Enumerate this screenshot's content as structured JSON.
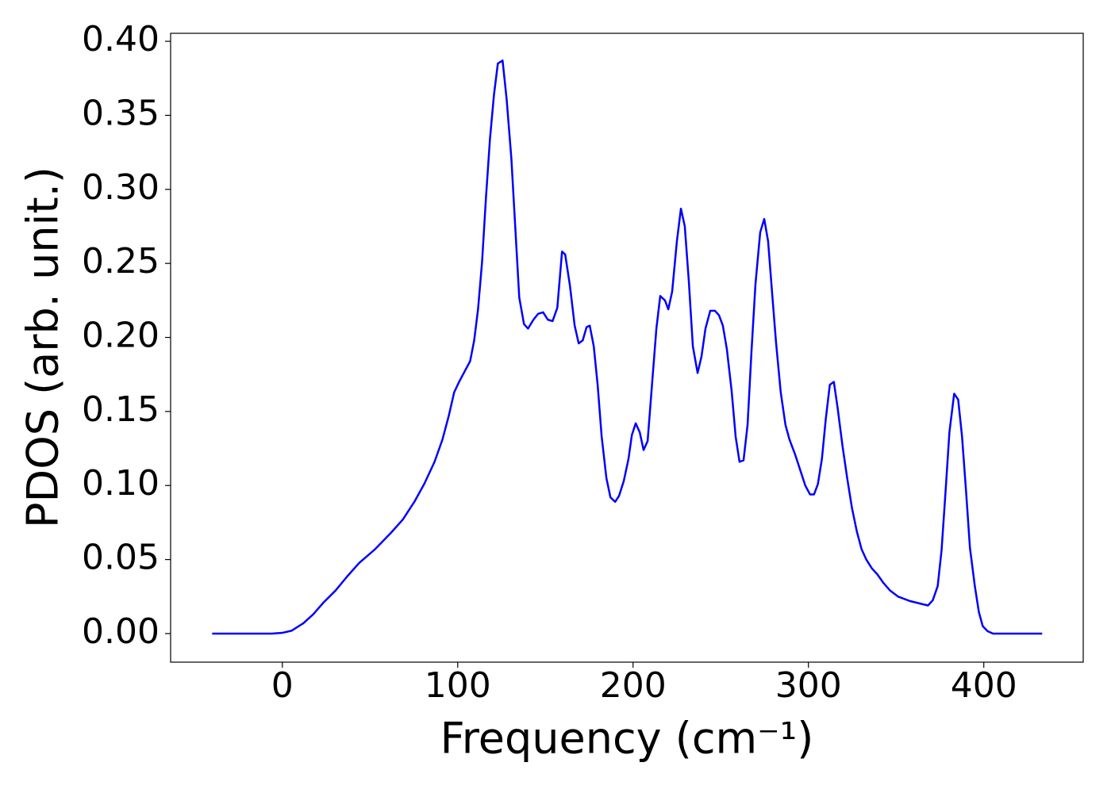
{
  "chart_data": {
    "type": "line",
    "xlabel": "Frequency (cm⁻¹)",
    "ylabel": "PDOS (arb. unit.)",
    "xlim": [
      -63.7,
      456.7
    ],
    "ylim": [
      -0.0193,
      0.4054
    ],
    "xticks": [
      0,
      100,
      200,
      300,
      400
    ],
    "yticks": [
      {
        "value": 0,
        "label": "0.00"
      },
      {
        "value": 0.05,
        "label": "0.05"
      },
      {
        "value": 0.1,
        "label": "0.10"
      },
      {
        "value": 0.15,
        "label": "0.15"
      },
      {
        "value": 0.2,
        "label": "0.20"
      },
      {
        "value": 0.25,
        "label": "0.25"
      },
      {
        "value": 0.3,
        "label": "0.30"
      },
      {
        "value": 0.35,
        "label": "0.35"
      },
      {
        "value": 0.4,
        "label": "0.40"
      }
    ],
    "grid": false,
    "color": "#0000ff",
    "x": [
      -40,
      -6,
      0,
      5.4,
      12,
      17.6,
      23.5,
      30.3,
      37,
      43.8,
      52.9,
      61.9,
      68.7,
      75.5,
      80.9,
      86.8,
      91.3,
      94.9,
      98,
      100.8,
      104.4,
      107.1,
      109.4,
      111.6,
      113.9,
      116.1,
      118.4,
      120.7,
      122.9,
      125.6,
      127.9,
      130.6,
      132.9,
      135.1,
      137.8,
      140.1,
      143.2,
      145.9,
      148.7,
      151.4,
      154.1,
      156.8,
      159.5,
      161.3,
      164,
      166.7,
      169,
      171.3,
      173.5,
      175.3,
      177.6,
      179.8,
      182.1,
      184.8,
      187.1,
      189.8,
      192,
      194.7,
      197.4,
      199.3,
      201.5,
      203.8,
      206,
      208.3,
      210.6,
      213.3,
      215.5,
      218.2,
      220.1,
      222.3,
      225,
      227.3,
      229.5,
      231.8,
      234.1,
      236.8,
      239,
      241.3,
      244,
      246.7,
      249,
      251.2,
      253.5,
      256.2,
      258.5,
      260.7,
      263,
      265.3,
      267.5,
      269.8,
      272.5,
      274.8,
      277,
      279.3,
      281.5,
      284.2,
      286.9,
      289.2,
      292.4,
      296,
      298.2,
      300.9,
      303.2,
      305.4,
      307.7,
      309.9,
      312.2,
      314.5,
      316.7,
      319.4,
      322.1,
      324.8,
      327.6,
      330.3,
      333,
      336.2,
      339.3,
      342.9,
      346.6,
      351.1,
      357.8,
      364.6,
      368.2,
      370.9,
      373.7,
      375.9,
      378.2,
      380.4,
      383.1,
      385.4,
      387.6,
      389.9,
      392.1,
      394.9,
      397.2,
      399.4,
      402.2,
      405.3,
      433.3
    ],
    "values": [
      0,
      0,
      0.0005,
      0.002,
      0.007,
      0.013,
      0.021,
      0.029,
      0.0386,
      0.0477,
      0.057,
      0.068,
      0.077,
      0.0894,
      0.101,
      0.116,
      0.131,
      0.147,
      0.163,
      0.17,
      0.178,
      0.184,
      0.198,
      0.219,
      0.251,
      0.294,
      0.334,
      0.364,
      0.385,
      0.387,
      0.361,
      0.321,
      0.273,
      0.227,
      0.209,
      0.206,
      0.212,
      0.216,
      0.217,
      0.212,
      0.211,
      0.22,
      0.258,
      0.256,
      0.235,
      0.208,
      0.196,
      0.198,
      0.207,
      0.208,
      0.194,
      0.168,
      0.133,
      0.105,
      0.092,
      0.089,
      0.093,
      0.103,
      0.118,
      0.134,
      0.142,
      0.136,
      0.124,
      0.13,
      0.165,
      0.206,
      0.228,
      0.225,
      0.219,
      0.231,
      0.265,
      0.287,
      0.275,
      0.238,
      0.194,
      0.176,
      0.187,
      0.206,
      0.218,
      0.218,
      0.215,
      0.208,
      0.192,
      0.164,
      0.133,
      0.116,
      0.117,
      0.141,
      0.19,
      0.236,
      0.271,
      0.28,
      0.265,
      0.23,
      0.197,
      0.163,
      0.141,
      0.131,
      0.121,
      0.108,
      0.1,
      0.094,
      0.094,
      0.101,
      0.118,
      0.145,
      0.168,
      0.17,
      0.152,
      0.127,
      0.105,
      0.085,
      0.069,
      0.057,
      0.05,
      0.044,
      0.04,
      0.034,
      0.029,
      0.025,
      0.022,
      0.02,
      0.019,
      0.0225,
      0.032,
      0.056,
      0.096,
      0.136,
      0.162,
      0.158,
      0.133,
      0.096,
      0.058,
      0.032,
      0.0145,
      0.005,
      0.0016,
      0,
      0
    ]
  }
}
